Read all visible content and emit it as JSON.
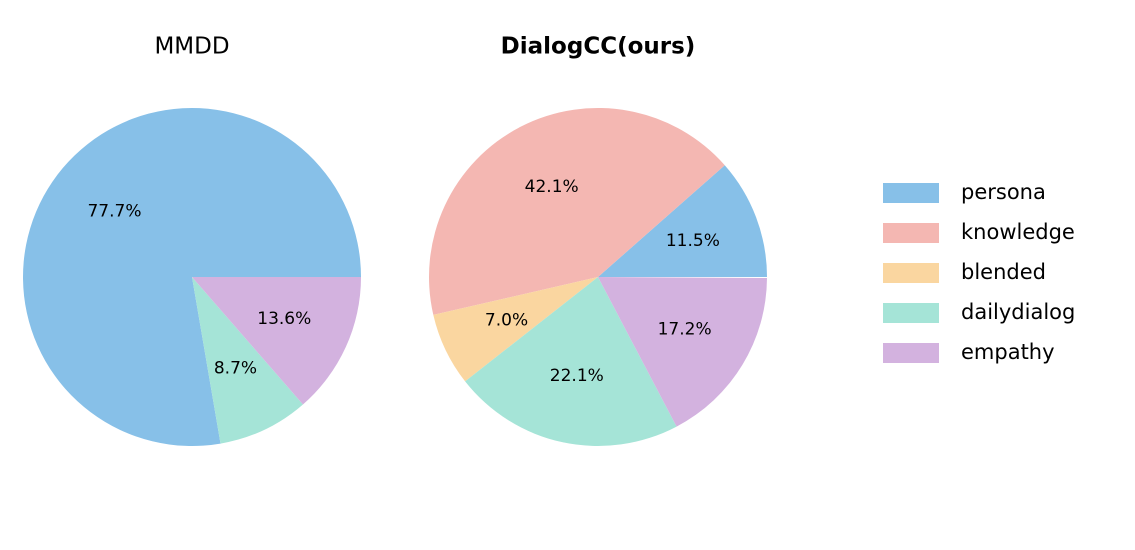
{
  "chart_data": [
    {
      "type": "pie",
      "title": "MMDD",
      "title_bold": false,
      "values": [
        77.7,
        0,
        0,
        8.7,
        13.6
      ],
      "value_labels": [
        "77.7%",
        null,
        null,
        "8.7%",
        "13.6%"
      ],
      "colors": [
        "#87c0e8",
        "#f4b7b2",
        "#fad6a0",
        "#a5e4d7",
        "#d3b2df"
      ]
    },
    {
      "type": "pie",
      "title": "DialogCC(ours)",
      "title_bold": true,
      "categories": [
        "persona",
        "knowledge",
        "blended",
        "dailydialog",
        "empathy"
      ],
      "values": [
        11.5,
        42.1,
        7.0,
        22.1,
        17.2
      ],
      "value_labels": [
        "11.5%",
        "42.1%",
        "7.0%",
        "22.1%",
        "17.2%"
      ],
      "colors": [
        "#87c0e8",
        "#f4b7b2",
        "#fad6a0",
        "#a5e4d7",
        "#d3b2df"
      ],
      "legend": "right"
    }
  ]
}
